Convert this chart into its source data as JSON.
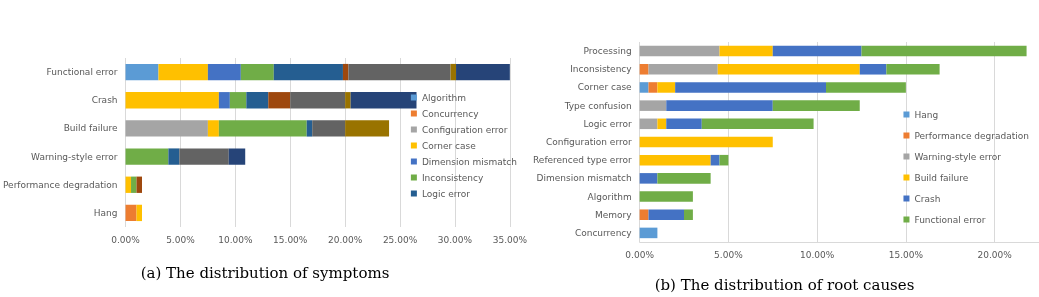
{
  "chart_data": [
    {
      "type": "bar",
      "orientation": "horizontal",
      "stacked": true,
      "title": "(a) The distribution of symptoms",
      "categories": [
        "Functional error",
        "Crash",
        "Build failure",
        "Warning-style error",
        "Performance degradation",
        "Hang"
      ],
      "series": [
        {
          "name": "Algorithm",
          "color": "#5b9bd5",
          "values": [
            3.0,
            null,
            null,
            null,
            null,
            null
          ]
        },
        {
          "name": "Concurrency",
          "color": "#ed7d31",
          "values": [
            null,
            null,
            null,
            null,
            null,
            1.0
          ]
        },
        {
          "name": "Configuration error",
          "color": "#a5a5a5",
          "values": [
            null,
            null,
            7.5,
            null,
            null,
            null
          ]
        },
        {
          "name": "Corner case",
          "color": "#ffc000",
          "values": [
            4.5,
            8.5,
            1.0,
            null,
            0.5,
            0.5
          ]
        },
        {
          "name": "Dimension mismatch",
          "color": "#4472c4",
          "values": [
            3.0,
            1.0,
            null,
            null,
            null,
            null
          ]
        },
        {
          "name": "Inconsistency",
          "color": "#70ad47",
          "values": [
            3.0,
            1.5,
            8.0,
            3.9,
            0.5,
            null
          ]
        },
        {
          "name": "Logic error",
          "color": "#255e91",
          "values": [
            6.3,
            2.0,
            0.5,
            1.0,
            null,
            null
          ]
        },
        {
          "color": "#9e480e",
          "values": [
            0.5,
            2.0,
            null,
            null,
            0.5,
            null
          ]
        },
        {
          "color": "#636363",
          "values": [
            9.3,
            5.0,
            3.0,
            4.5,
            null,
            null
          ]
        },
        {
          "color": "#997300",
          "values": [
            0.5,
            0.5,
            4.0,
            null,
            null,
            null
          ]
        },
        {
          "color": "#264478",
          "values": [
            4.9,
            6.0,
            null,
            1.5,
            null,
            null
          ]
        }
      ],
      "xlim": [
        0,
        35
      ],
      "xticks": [
        {
          "value": 0,
          "label": "0.00%"
        },
        {
          "value": 5,
          "label": "5.00%"
        },
        {
          "value": 10,
          "label": "10.00%"
        },
        {
          "value": 15,
          "label": "15.00%"
        },
        {
          "value": 20,
          "label": "20.00%"
        },
        {
          "value": 25,
          "label": "25.00%"
        },
        {
          "value": 30,
          "label": "30.00%"
        },
        {
          "value": 35,
          "label": "35.00%"
        }
      ],
      "grid": "x",
      "legend": "right"
    },
    {
      "type": "bar",
      "orientation": "horizontal",
      "stacked": true,
      "title": "(b) The distribution of root causes",
      "categories": [
        "Processing",
        "Inconsistency",
        "Corner case",
        "Type confusion",
        "Logic error",
        "Configuration error",
        "Referenced type error",
        "Dimension mismatch",
        "Algorithm",
        "Memory",
        "Concurrency"
      ],
      "series": [
        {
          "name": "Hang",
          "color": "#5b9bd5",
          "values": [
            null,
            null,
            0.5,
            null,
            null,
            null,
            null,
            null,
            null,
            null,
            1.0
          ]
        },
        {
          "name": "Performance degradation",
          "color": "#ed7d31",
          "values": [
            null,
            0.5,
            0.5,
            null,
            null,
            null,
            null,
            null,
            null,
            0.5,
            null
          ]
        },
        {
          "name": "Warning-style error",
          "color": "#a5a5a5",
          "values": [
            4.5,
            3.9,
            null,
            1.5,
            1.0,
            null,
            null,
            null,
            null,
            null,
            null
          ]
        },
        {
          "name": "Build failure",
          "color": "#ffc000",
          "values": [
            3.0,
            8.0,
            1.0,
            null,
            0.5,
            7.5,
            4.0,
            null,
            null,
            null,
            null
          ]
        },
        {
          "name": "Crash",
          "color": "#4472c4",
          "values": [
            5.0,
            1.5,
            8.5,
            6.0,
            2.0,
            null,
            0.5,
            1.0,
            null,
            2.0,
            null
          ]
        },
        {
          "name": "Functional error",
          "color": "#70ad47",
          "values": [
            9.3,
            3.0,
            4.5,
            4.9,
            6.3,
            null,
            0.5,
            3.0,
            3.0,
            0.5,
            null
          ]
        }
      ],
      "xlim": [
        0,
        22.5
      ],
      "xticks": [
        {
          "value": 0,
          "label": "0.00%"
        },
        {
          "value": 5,
          "label": "5.00%"
        },
        {
          "value": 10,
          "label": "10.00%"
        },
        {
          "value": 15,
          "label": "15.00%"
        },
        {
          "value": 20,
          "label": "20.00%"
        }
      ],
      "grid": "x",
      "legend": "bottom right"
    }
  ]
}
